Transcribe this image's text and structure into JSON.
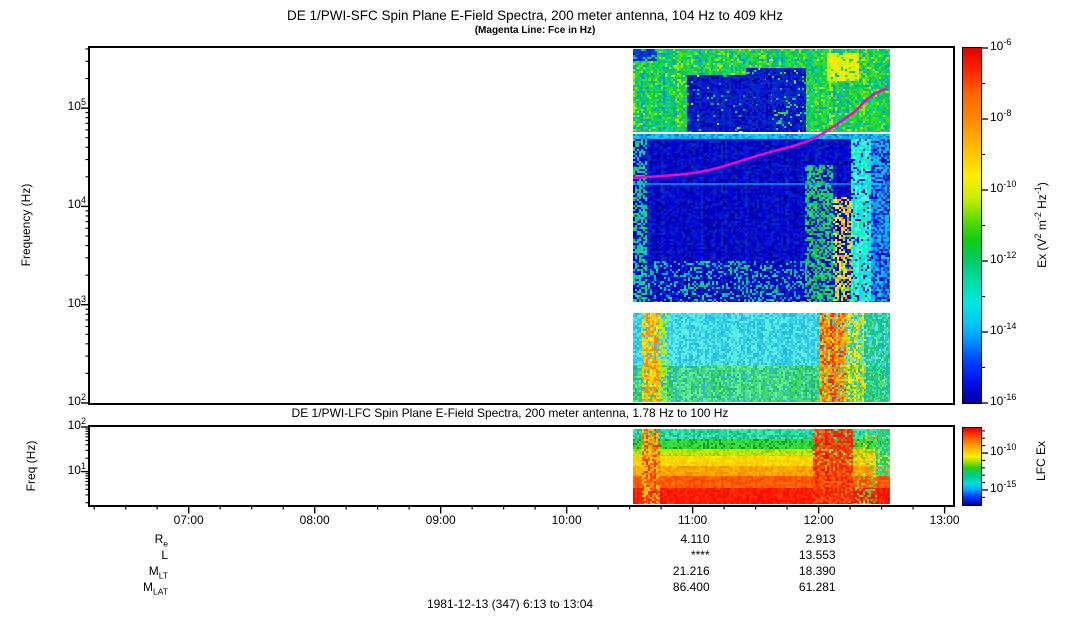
{
  "header": {
    "title": "DE 1/PWI-SFC  Spin Plane E-Field Spectra, 200 meter antenna, 104 Hz to 409 kHz",
    "subtitle": "(Magenta Line: Fce in Hz)"
  },
  "footer": {
    "date_line": "1981-12-13 (347) 6:13 to 13:04"
  },
  "time_axis": {
    "start": "6:13",
    "end": "13:04",
    "start_min": 373,
    "end_min": 784,
    "major_labels": [
      "07:00",
      "08:00",
      "09:00",
      "10:00",
      "11:00",
      "12:00",
      "13:00"
    ],
    "minor_step_min": 15
  },
  "orbit_rows": {
    "labels": [
      {
        "parts": [
          {
            "t": "R"
          },
          {
            "sub": "e"
          }
        ]
      },
      {
        "parts": [
          {
            "t": "L"
          }
        ]
      },
      {
        "parts": [
          {
            "t": "M"
          },
          {
            "sub": "LT"
          }
        ]
      },
      {
        "parts": [
          {
            "t": "M"
          },
          {
            "sub": "LAT"
          }
        ]
      }
    ],
    "columns": [
      {
        "time": "11:00",
        "values": [
          "4.110",
          "****",
          "21.216",
          "86.400"
        ]
      },
      {
        "time": "12:00",
        "values": [
          "2.913",
          "13.553",
          "18.390",
          "61.281"
        ]
      }
    ]
  },
  "chart_data": [
    {
      "id": "sfc",
      "type": "heatmap",
      "title": "DE 1/PWI-SFC  Spin Plane E-Field Spectra, 200 meter antenna, 104 Hz to 409 kHz",
      "ylabel": "Frequency (Hz)",
      "y_scale": "log",
      "y_range_hz": [
        100,
        409000
      ],
      "y_tick_exponents": [
        2,
        3,
        4,
        5
      ],
      "data_window": {
        "t_start": "10:32",
        "t_end": "12:35"
      },
      "colorbar": {
        "label_parts": [
          {
            "t": "Ex (V"
          },
          {
            "sup": "2"
          },
          {
            "t": " m"
          },
          {
            "sup": "-2"
          },
          {
            "t": " Hz"
          },
          {
            "sup": "-1"
          },
          {
            "t": ")"
          }
        ],
        "labeled_exponents": [
          -6,
          -8,
          -10,
          -12,
          -14,
          -16
        ],
        "exponent_range": [
          -6,
          -16
        ],
        "gradient": [
          [
            0,
            "#dd0000"
          ],
          [
            0.06,
            "#ff2200"
          ],
          [
            0.13,
            "#ff6600"
          ],
          [
            0.2,
            "#ff8800"
          ],
          [
            0.28,
            "#ffbb00"
          ],
          [
            0.36,
            "#ffee00"
          ],
          [
            0.42,
            "#ccee00"
          ],
          [
            0.48,
            "#66dd00"
          ],
          [
            0.54,
            "#11cc11"
          ],
          [
            0.6,
            "#00cc66"
          ],
          [
            0.66,
            "#00ddaa"
          ],
          [
            0.72,
            "#00e8e0"
          ],
          [
            0.78,
            "#00c4f4"
          ],
          [
            0.82,
            "#0099ff"
          ],
          [
            0.88,
            "#0044ff"
          ],
          [
            0.94,
            "#0011ee"
          ],
          [
            1,
            "#000099"
          ]
        ]
      },
      "fce_line": {
        "color": "#ff00cc",
        "points_frac": [
          [
            0,
            0.366
          ],
          [
            0.26,
            0.349
          ],
          [
            0.494,
            0.301
          ],
          [
            0.689,
            0.259
          ],
          [
            0.844,
            0.189
          ],
          [
            0.922,
            0.138
          ],
          [
            0.988,
            0.113
          ]
        ]
      },
      "heat": {
        "seed": 42,
        "bands": [
          {
            "name": "upper-auroral-hiss",
            "y0": 0.0,
            "y1": 0.2338,
            "palette": [
              "#00cc55",
              "#22cc33",
              "#00dd77",
              "#33dd22",
              "#00bbaa",
              "#66dd00",
              "#aaee00",
              "#22dd44",
              "#0099dd",
              "#00cc55"
            ]
          },
          {
            "name": "cyan-stripe-55khz",
            "y0": 0.2394,
            "y1": 0.2563,
            "palette": [
              "#00bbff",
              "#00ccff",
              "#0099ee",
              "#00ddff",
              "#0077dd"
            ]
          },
          {
            "name": "mid-quiet-blue",
            "y0": 0.2563,
            "y1": 0.7155,
            "palette": [
              "#0000bb",
              "#0000d6",
              "#0000a0",
              "#0011e0",
              "#0022cc",
              "#000099",
              "#0033bb",
              "#0000e8"
            ]
          },
          {
            "name": "low-band-hiss",
            "y0": 0.7465,
            "y1": 0.898,
            "palette": [
              "#33ccee",
              "#44ddee",
              "#22bbdd",
              "#55eedd",
              "#2fc4e8",
              "#66eee6"
            ]
          },
          {
            "name": "low-band-bottom-green",
            "y0": 0.898,
            "y1": 1.0,
            "palette": [
              "#33cc77",
              "#55dd88",
              "#22bb66",
              "#44dd66",
              "#66ee99",
              "#2db5e0"
            ]
          }
        ],
        "blobs": [
          {
            "name": "dark-blob-1",
            "x0": 0.21,
            "x1": 0.53,
            "y0": 0.075,
            "y1": 0.2338,
            "density": 0.95,
            "palette": [
              "#0011cc",
              "#0000aa",
              "#0022dd",
              "#0133bb"
            ]
          },
          {
            "name": "dark-blob-2",
            "x0": 0.44,
            "x1": 0.67,
            "y0": 0.055,
            "y1": 0.2338,
            "density": 0.92,
            "palette": [
              "#0011cc",
              "#0000aa",
              "#0022dd",
              "#0133bb"
            ]
          },
          {
            "name": "top-left-blue",
            "x0": 0.0,
            "x1": 0.09,
            "y0": 0.0,
            "y1": 0.03,
            "density": 0.8,
            "palette": [
              "#0022dd",
              "#0044cc"
            ]
          },
          {
            "name": "yellow-patch-top-right",
            "x0": 0.755,
            "x1": 0.875,
            "y0": 0.012,
            "y1": 0.085,
            "density": 0.9,
            "palette": [
              "#eeee00",
              "#ffee00",
              "#ddee00",
              "#ccee11"
            ]
          }
        ],
        "streaks": [
          {
            "name": "left-green-columns",
            "x0": 0.0,
            "x1": 0.05,
            "y0": 0.2563,
            "y1": 0.7155,
            "density": 0.55,
            "palette": [
              "#00cc66",
              "#00ddaa",
              "#00bbee",
              "#00dd55"
            ]
          },
          {
            "name": "green-column-1200",
            "x0": 0.669,
            "x1": 0.778,
            "y0": 0.33,
            "y1": 0.7155,
            "density": 0.6,
            "palette": [
              "#00cc55",
              "#00dd88",
              "#00bb44",
              "#22dd66"
            ]
          },
          {
            "name": "orange-streaks",
            "x0": 0.778,
            "x1": 0.848,
            "y0": 0.42,
            "y1": 0.7155,
            "density": 0.5,
            "palette": [
              "#ffcc00",
              "#ff9900",
              "#ddee00",
              "#ffee22",
              "#00dd66"
            ]
          },
          {
            "name": "bright-cyan-column",
            "x0": 0.848,
            "x1": 0.926,
            "y0": 0.2563,
            "y1": 0.7155,
            "density": 0.85,
            "palette": [
              "#00eebb",
              "#00ff99",
              "#44ffee",
              "#00ddff",
              "#55ffcc"
            ]
          },
          {
            "name": "right-cyan-mix",
            "x0": 0.926,
            "x1": 1.0,
            "y0": 0.2563,
            "y1": 0.7155,
            "density": 0.7,
            "palette": [
              "#0066ff",
              "#0099ff",
              "#00bbff",
              "#0044ee",
              "#00ccee"
            ]
          },
          {
            "name": "bottom-green-speckle",
            "x0": 0.06,
            "x1": 0.67,
            "y0": 0.6,
            "y1": 0.7155,
            "density": 0.28,
            "palette": [
              "#00cc66",
              "#00ddaa",
              "#0099ff",
              "#00bb88"
            ]
          },
          {
            "name": "lfcband-orange-left",
            "x0": 0.035,
            "x1": 0.1,
            "y0": 0.7465,
            "y1": 1.0,
            "density": 0.8,
            "palette": [
              "#ffee00",
              "#ffbb00",
              "#ff8800",
              "#ffd500"
            ]
          },
          {
            "name": "lfcband-yellowgreen-left",
            "x0": 0.1,
            "x1": 0.13,
            "y0": 0.7465,
            "y1": 1.0,
            "density": 0.5,
            "palette": [
              "#aaee00",
              "#ccee00"
            ]
          },
          {
            "name": "lfcband-hot-column",
            "x0": 0.728,
            "x1": 0.828,
            "y0": 0.7465,
            "y1": 1.0,
            "density": 0.85,
            "palette": [
              "#ff9900",
              "#ff6600",
              "#ffcc00",
              "#ee3300",
              "#ff8800"
            ]
          },
          {
            "name": "lfcband-warm-column",
            "x0": 0.828,
            "x1": 0.9,
            "y0": 0.7465,
            "y1": 1.0,
            "density": 0.6,
            "palette": [
              "#ffcc00",
              "#aadd00",
              "#55cc44",
              "#ffee00"
            ]
          },
          {
            "name": "lfcband-green-right",
            "x0": 0.9,
            "x1": 1.0,
            "y0": 0.7465,
            "y1": 1.0,
            "density": 0.6,
            "palette": [
              "#33cc66",
              "#22bb88",
              "#55dd77",
              "#00cc99"
            ]
          }
        ],
        "gaps": [
          {
            "name": "white-gap-55khz",
            "y0": 0.2338,
            "y1": 0.2394
          },
          {
            "name": "white-gap-900hz",
            "y0": 0.7155,
            "y1": 0.7465
          }
        ],
        "hlines": [
          {
            "name": "faint-cyan-line-16khz",
            "y": 0.38,
            "h": 2,
            "color": "rgba(0,190,255,0.6)"
          }
        ]
      }
    },
    {
      "id": "lfc",
      "type": "heatmap",
      "title": "DE 1/PWI-LFC  Spin Plane E-Field Spectra, 200 meter antenna, 1.78 Hz to 100 Hz",
      "ylabel": "Freq (Hz)",
      "y_scale": "log",
      "y_range_hz": [
        1.78,
        100
      ],
      "y_tick_exponents": [
        1,
        2
      ],
      "data_window": {
        "t_start": "10:32",
        "t_end": "12:35"
      },
      "colorbar": {
        "label_parts": [
          {
            "t": "LFC Ex"
          }
        ],
        "labeled_ticks": [
          {
            "exp": -10,
            "frac": 0.325
          },
          {
            "exp": -15,
            "frac": 0.805
          }
        ],
        "minor_exponent_range": [
          -7,
          -16
        ],
        "decade_frac_step": 0.096,
        "gradient": [
          [
            0,
            "#dd0000"
          ],
          [
            0.1,
            "#ff4400"
          ],
          [
            0.2,
            "#ff8800"
          ],
          [
            0.3,
            "#ffcc00"
          ],
          [
            0.37,
            "#ffee00"
          ],
          [
            0.45,
            "#99dd00"
          ],
          [
            0.52,
            "#22cc22"
          ],
          [
            0.62,
            "#00cc88"
          ],
          [
            0.72,
            "#00dddd"
          ],
          [
            0.8,
            "#00aaff"
          ],
          [
            0.88,
            "#0044ff"
          ],
          [
            1,
            "#0000aa"
          ]
        ]
      },
      "heat": {
        "seed": 99,
        "bands": [
          {
            "name": "row-teal",
            "y0": 0.0,
            "y1": 0.13,
            "palette": [
              "#33ddaa",
              "#22cc99",
              "#44eebb",
              "#11bb88"
            ]
          },
          {
            "name": "row-green",
            "y0": 0.13,
            "y1": 0.26,
            "palette": [
              "#22cc33",
              "#33dd44",
              "#119922",
              "#44dd33"
            ]
          },
          {
            "name": "row-yellowgreen",
            "y0": 0.26,
            "y1": 0.36,
            "palette": [
              "#aadd00",
              "#ccee00",
              "#88cc00",
              "#bbee00"
            ]
          },
          {
            "name": "row-yellow",
            "y0": 0.36,
            "y1": 0.49,
            "palette": [
              "#ffee00",
              "#ffdd00",
              "#eecc00",
              "#ffcc00"
            ]
          },
          {
            "name": "row-orange",
            "y0": 0.49,
            "y1": 0.62,
            "palette": [
              "#ffaa00",
              "#ff9900",
              "#ffbb00",
              "#ff8800"
            ]
          },
          {
            "name": "row-deeporange",
            "y0": 0.62,
            "y1": 0.78,
            "palette": [
              "#ff6600",
              "#ff5500",
              "#ff7700",
              "#ff4400"
            ]
          },
          {
            "name": "row-red",
            "y0": 0.78,
            "y1": 1.0,
            "palette": [
              "#ff2200",
              "#ee1100",
              "#ff3300",
              "#ff1100"
            ]
          }
        ],
        "blobs": [],
        "streaks": [
          {
            "name": "orange-column-1035",
            "x0": 0.035,
            "x1": 0.1,
            "y0": 0,
            "y1": 1,
            "density": 0.8,
            "palette": [
              "#ff7700",
              "#ff5500",
              "#ffaa00",
              "#ff3300",
              "#ffcc00"
            ]
          },
          {
            "name": "red-column-1210",
            "x0": 0.7,
            "x1": 0.855,
            "y0": 0,
            "y1": 1,
            "density": 0.85,
            "palette": [
              "#ff3300",
              "#ff5500",
              "#ee1100",
              "#ff7700",
              "#ff2200"
            ]
          },
          {
            "name": "transition-column",
            "x0": 0.855,
            "x1": 0.945,
            "y0": 0,
            "y1": 1,
            "density": 0.3,
            "palette": [
              "#ffee00",
              "#aadd00",
              "#ff9900",
              "#55cc44"
            ]
          },
          {
            "name": "end-green-column",
            "x0": 0.945,
            "x1": 1.0,
            "y0": 0,
            "y1": 0.6,
            "density": 0.75,
            "palette": [
              "#33cc88",
              "#55ddaa",
              "#22cc55"
            ]
          }
        ],
        "gaps": [],
        "hlines": []
      }
    }
  ]
}
